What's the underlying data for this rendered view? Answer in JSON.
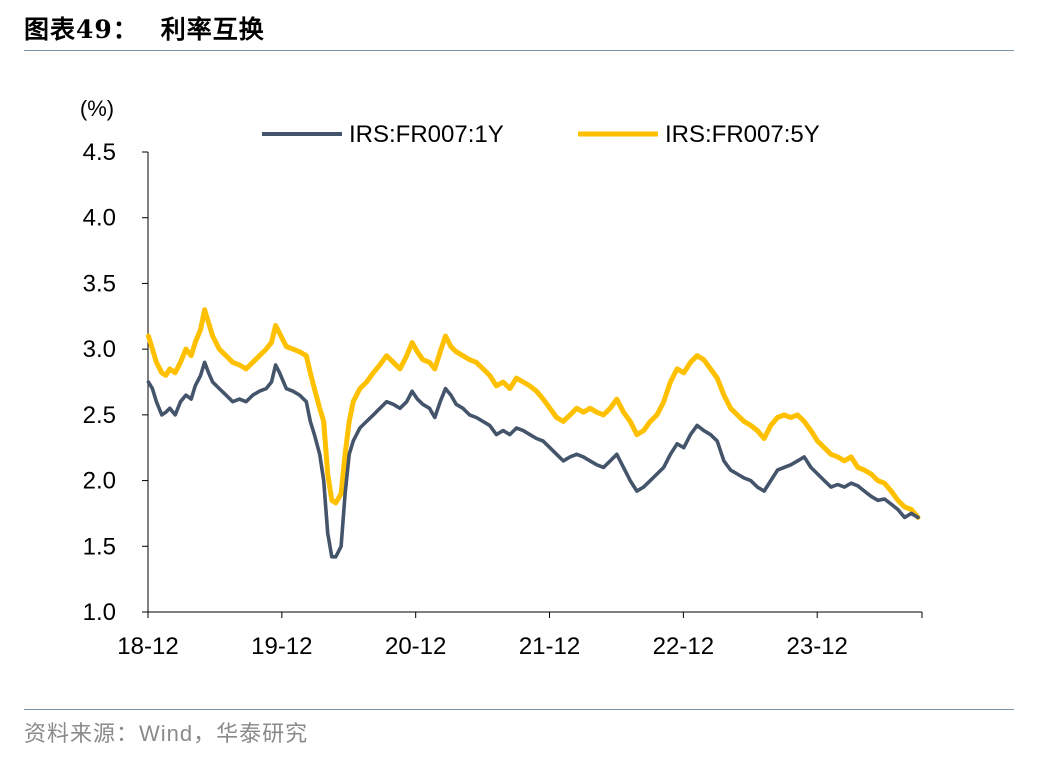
{
  "figure": {
    "number_label": "图表49：",
    "title": "利率互换",
    "source": "资料来源：Wind，华泰研究"
  },
  "chart_data": {
    "type": "line",
    "ylabel": "(%)",
    "xlabel": "",
    "ylim": [
      1.0,
      4.5
    ],
    "yticks": [
      "1.0",
      "1.5",
      "2.0",
      "2.5",
      "3.0",
      "3.5",
      "4.0",
      "4.5"
    ],
    "xlim": [
      2018.917,
      2024.7
    ],
    "xticks": [
      {
        "label": "18-12",
        "x": 2018.917
      },
      {
        "label": "19-12",
        "x": 2019.917
      },
      {
        "label": "20-12",
        "x": 2020.917
      },
      {
        "label": "21-12",
        "x": 2021.917
      },
      {
        "label": "22-12",
        "x": 2022.917
      },
      {
        "label": "23-12",
        "x": 2023.917
      }
    ],
    "grid": false,
    "legend": "top-center",
    "series": [
      {
        "name": "IRS:FR007:1Y",
        "color": "#44546a",
        "points": [
          [
            2018.92,
            2.75
          ],
          [
            2018.95,
            2.7
          ],
          [
            2018.98,
            2.6
          ],
          [
            2019.02,
            2.5
          ],
          [
            2019.05,
            2.52
          ],
          [
            2019.08,
            2.55
          ],
          [
            2019.12,
            2.5
          ],
          [
            2019.16,
            2.6
          ],
          [
            2019.2,
            2.65
          ],
          [
            2019.24,
            2.62
          ],
          [
            2019.27,
            2.72
          ],
          [
            2019.31,
            2.8
          ],
          [
            2019.34,
            2.9
          ],
          [
            2019.37,
            2.82
          ],
          [
            2019.4,
            2.75
          ],
          [
            2019.45,
            2.7
          ],
          [
            2019.5,
            2.65
          ],
          [
            2019.55,
            2.6
          ],
          [
            2019.6,
            2.62
          ],
          [
            2019.65,
            2.6
          ],
          [
            2019.7,
            2.65
          ],
          [
            2019.75,
            2.68
          ],
          [
            2019.8,
            2.7
          ],
          [
            2019.84,
            2.75
          ],
          [
            2019.87,
            2.88
          ],
          [
            2019.9,
            2.82
          ],
          [
            2019.95,
            2.7
          ],
          [
            2020.0,
            2.68
          ],
          [
            2020.05,
            2.65
          ],
          [
            2020.1,
            2.6
          ],
          [
            2020.13,
            2.45
          ],
          [
            2020.16,
            2.35
          ],
          [
            2020.2,
            2.2
          ],
          [
            2020.23,
            2.0
          ],
          [
            2020.26,
            1.6
          ],
          [
            2020.29,
            1.42
          ],
          [
            2020.32,
            1.42
          ],
          [
            2020.36,
            1.5
          ],
          [
            2020.39,
            1.9
          ],
          [
            2020.42,
            2.2
          ],
          [
            2020.45,
            2.3
          ],
          [
            2020.5,
            2.4
          ],
          [
            2020.55,
            2.45
          ],
          [
            2020.6,
            2.5
          ],
          [
            2020.65,
            2.55
          ],
          [
            2020.7,
            2.6
          ],
          [
            2020.75,
            2.58
          ],
          [
            2020.8,
            2.55
          ],
          [
            2020.85,
            2.6
          ],
          [
            2020.89,
            2.68
          ],
          [
            2020.93,
            2.62
          ],
          [
            2020.97,
            2.58
          ],
          [
            2021.02,
            2.55
          ],
          [
            2021.06,
            2.48
          ],
          [
            2021.1,
            2.6
          ],
          [
            2021.14,
            2.7
          ],
          [
            2021.18,
            2.65
          ],
          [
            2021.22,
            2.58
          ],
          [
            2021.27,
            2.55
          ],
          [
            2021.32,
            2.5
          ],
          [
            2021.37,
            2.48
          ],
          [
            2021.42,
            2.45
          ],
          [
            2021.47,
            2.42
          ],
          [
            2021.52,
            2.35
          ],
          [
            2021.57,
            2.38
          ],
          [
            2021.62,
            2.35
          ],
          [
            2021.67,
            2.4
          ],
          [
            2021.72,
            2.38
          ],
          [
            2021.77,
            2.35
          ],
          [
            2021.82,
            2.32
          ],
          [
            2021.87,
            2.3
          ],
          [
            2021.92,
            2.25
          ],
          [
            2021.97,
            2.2
          ],
          [
            2022.02,
            2.15
          ],
          [
            2022.07,
            2.18
          ],
          [
            2022.12,
            2.2
          ],
          [
            2022.17,
            2.18
          ],
          [
            2022.22,
            2.15
          ],
          [
            2022.27,
            2.12
          ],
          [
            2022.32,
            2.1
          ],
          [
            2022.37,
            2.15
          ],
          [
            2022.42,
            2.2
          ],
          [
            2022.47,
            2.1
          ],
          [
            2022.52,
            2.0
          ],
          [
            2022.57,
            1.92
          ],
          [
            2022.62,
            1.95
          ],
          [
            2022.67,
            2.0
          ],
          [
            2022.72,
            2.05
          ],
          [
            2022.77,
            2.1
          ],
          [
            2022.82,
            2.2
          ],
          [
            2022.87,
            2.28
          ],
          [
            2022.92,
            2.25
          ],
          [
            2022.97,
            2.35
          ],
          [
            2023.02,
            2.42
          ],
          [
            2023.07,
            2.38
          ],
          [
            2023.12,
            2.35
          ],
          [
            2023.17,
            2.3
          ],
          [
            2023.22,
            2.15
          ],
          [
            2023.27,
            2.08
          ],
          [
            2023.32,
            2.05
          ],
          [
            2023.37,
            2.02
          ],
          [
            2023.42,
            2.0
          ],
          [
            2023.47,
            1.95
          ],
          [
            2023.52,
            1.92
          ],
          [
            2023.57,
            2.0
          ],
          [
            2023.62,
            2.08
          ],
          [
            2023.67,
            2.1
          ],
          [
            2023.72,
            2.12
          ],
          [
            2023.77,
            2.15
          ],
          [
            2023.82,
            2.18
          ],
          [
            2023.87,
            2.1
          ],
          [
            2023.92,
            2.05
          ],
          [
            2023.97,
            2.0
          ],
          [
            2024.02,
            1.95
          ],
          [
            2024.07,
            1.97
          ],
          [
            2024.12,
            1.95
          ],
          [
            2024.17,
            1.98
          ],
          [
            2024.22,
            1.96
          ],
          [
            2024.27,
            1.92
          ],
          [
            2024.32,
            1.88
          ],
          [
            2024.37,
            1.85
          ],
          [
            2024.42,
            1.86
          ],
          [
            2024.47,
            1.82
          ],
          [
            2024.52,
            1.78
          ],
          [
            2024.57,
            1.72
          ],
          [
            2024.62,
            1.75
          ],
          [
            2024.67,
            1.72
          ]
        ]
      },
      {
        "name": "IRS:FR007:5Y",
        "color": "#ffc000",
        "points": [
          [
            2018.92,
            3.1
          ],
          [
            2018.95,
            3.0
          ],
          [
            2018.98,
            2.9
          ],
          [
            2019.02,
            2.82
          ],
          [
            2019.05,
            2.8
          ],
          [
            2019.08,
            2.85
          ],
          [
            2019.12,
            2.82
          ],
          [
            2019.16,
            2.9
          ],
          [
            2019.2,
            3.0
          ],
          [
            2019.24,
            2.95
          ],
          [
            2019.27,
            3.05
          ],
          [
            2019.31,
            3.15
          ],
          [
            2019.34,
            3.3
          ],
          [
            2019.37,
            3.2
          ],
          [
            2019.4,
            3.1
          ],
          [
            2019.45,
            3.0
          ],
          [
            2019.5,
            2.95
          ],
          [
            2019.55,
            2.9
          ],
          [
            2019.6,
            2.88
          ],
          [
            2019.65,
            2.85
          ],
          [
            2019.7,
            2.9
          ],
          [
            2019.75,
            2.95
          ],
          [
            2019.8,
            3.0
          ],
          [
            2019.84,
            3.05
          ],
          [
            2019.87,
            3.18
          ],
          [
            2019.9,
            3.12
          ],
          [
            2019.95,
            3.02
          ],
          [
            2020.0,
            3.0
          ],
          [
            2020.05,
            2.98
          ],
          [
            2020.1,
            2.95
          ],
          [
            2020.13,
            2.82
          ],
          [
            2020.16,
            2.7
          ],
          [
            2020.2,
            2.55
          ],
          [
            2020.23,
            2.45
          ],
          [
            2020.26,
            2.05
          ],
          [
            2020.29,
            1.85
          ],
          [
            2020.32,
            1.83
          ],
          [
            2020.36,
            1.9
          ],
          [
            2020.39,
            2.2
          ],
          [
            2020.42,
            2.45
          ],
          [
            2020.45,
            2.6
          ],
          [
            2020.5,
            2.7
          ],
          [
            2020.55,
            2.75
          ],
          [
            2020.6,
            2.82
          ],
          [
            2020.65,
            2.88
          ],
          [
            2020.7,
            2.95
          ],
          [
            2020.75,
            2.9
          ],
          [
            2020.8,
            2.85
          ],
          [
            2020.85,
            2.95
          ],
          [
            2020.89,
            3.05
          ],
          [
            2020.93,
            2.98
          ],
          [
            2020.97,
            2.92
          ],
          [
            2021.02,
            2.9
          ],
          [
            2021.06,
            2.85
          ],
          [
            2021.1,
            2.98
          ],
          [
            2021.14,
            3.1
          ],
          [
            2021.18,
            3.02
          ],
          [
            2021.22,
            2.98
          ],
          [
            2021.27,
            2.95
          ],
          [
            2021.32,
            2.92
          ],
          [
            2021.37,
            2.9
          ],
          [
            2021.42,
            2.85
          ],
          [
            2021.47,
            2.8
          ],
          [
            2021.52,
            2.72
          ],
          [
            2021.57,
            2.75
          ],
          [
            2021.62,
            2.7
          ],
          [
            2021.67,
            2.78
          ],
          [
            2021.72,
            2.75
          ],
          [
            2021.77,
            2.72
          ],
          [
            2021.82,
            2.68
          ],
          [
            2021.87,
            2.62
          ],
          [
            2021.92,
            2.55
          ],
          [
            2021.97,
            2.48
          ],
          [
            2022.02,
            2.45
          ],
          [
            2022.07,
            2.5
          ],
          [
            2022.12,
            2.55
          ],
          [
            2022.17,
            2.52
          ],
          [
            2022.22,
            2.55
          ],
          [
            2022.27,
            2.52
          ],
          [
            2022.32,
            2.5
          ],
          [
            2022.37,
            2.55
          ],
          [
            2022.42,
            2.62
          ],
          [
            2022.47,
            2.52
          ],
          [
            2022.52,
            2.45
          ],
          [
            2022.57,
            2.35
          ],
          [
            2022.62,
            2.38
          ],
          [
            2022.67,
            2.45
          ],
          [
            2022.72,
            2.5
          ],
          [
            2022.77,
            2.6
          ],
          [
            2022.82,
            2.75
          ],
          [
            2022.87,
            2.85
          ],
          [
            2022.92,
            2.82
          ],
          [
            2022.97,
            2.9
          ],
          [
            2023.02,
            2.95
          ],
          [
            2023.07,
            2.92
          ],
          [
            2023.12,
            2.85
          ],
          [
            2023.17,
            2.78
          ],
          [
            2023.22,
            2.65
          ],
          [
            2023.27,
            2.55
          ],
          [
            2023.32,
            2.5
          ],
          [
            2023.37,
            2.45
          ],
          [
            2023.42,
            2.42
          ],
          [
            2023.47,
            2.38
          ],
          [
            2023.52,
            2.32
          ],
          [
            2023.57,
            2.42
          ],
          [
            2023.62,
            2.48
          ],
          [
            2023.67,
            2.5
          ],
          [
            2023.72,
            2.48
          ],
          [
            2023.77,
            2.5
          ],
          [
            2023.82,
            2.45
          ],
          [
            2023.87,
            2.38
          ],
          [
            2023.92,
            2.3
          ],
          [
            2023.97,
            2.25
          ],
          [
            2024.02,
            2.2
          ],
          [
            2024.07,
            2.18
          ],
          [
            2024.12,
            2.15
          ],
          [
            2024.17,
            2.18
          ],
          [
            2024.22,
            2.1
          ],
          [
            2024.27,
            2.08
          ],
          [
            2024.32,
            2.05
          ],
          [
            2024.37,
            2.0
          ],
          [
            2024.42,
            1.98
          ],
          [
            2024.47,
            1.92
          ],
          [
            2024.52,
            1.85
          ],
          [
            2024.57,
            1.8
          ],
          [
            2024.62,
            1.78
          ],
          [
            2024.67,
            1.72
          ]
        ]
      }
    ]
  }
}
